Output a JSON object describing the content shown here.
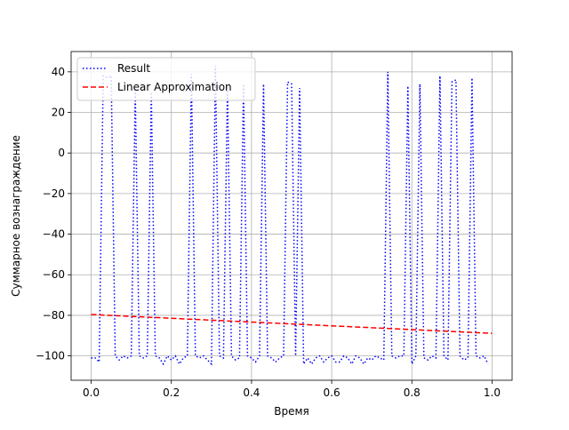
{
  "chart_data": {
    "type": "line",
    "xlabel": "Время",
    "ylabel": "Суммарное вознаграждение",
    "xlim": [
      -0.05,
      1.05
    ],
    "ylim": [
      -112,
      50
    ],
    "xticks": [
      {
        "value": 0,
        "label": "0.0"
      },
      0.2,
      0.4,
      0.6,
      0.8,
      {
        "value": 1,
        "label": "1.0"
      }
    ],
    "yticks": [
      {
        "value": -100,
        "label": "−100"
      },
      {
        "value": -80,
        "label": "−80"
      },
      {
        "value": -60,
        "label": "−60"
      },
      {
        "value": -40,
        "label": "−40"
      },
      {
        "value": -20,
        "label": "−20"
      },
      0,
      20,
      40
    ],
    "grid": true,
    "legend": "upper left",
    "series": [
      {
        "name": "Result",
        "color": "#0000ff",
        "linestyle": "dotted",
        "x": [
          0,
          0.01,
          0.02,
          0.03,
          0.04,
          0.05,
          0.06,
          0.07,
          0.08,
          0.09,
          0.1,
          0.11,
          0.12,
          0.13,
          0.14,
          0.15,
          0.16,
          0.17,
          0.18,
          0.19,
          0.2,
          0.21,
          0.22,
          0.23,
          0.24,
          0.25,
          0.26,
          0.27,
          0.28,
          0.29,
          0.3,
          0.31,
          0.32,
          0.33,
          0.34,
          0.35,
          0.36,
          0.37,
          0.38,
          0.39,
          0.4,
          0.41,
          0.42,
          0.43,
          0.44,
          0.45,
          0.46,
          0.47,
          0.48,
          0.49,
          0.5,
          0.51,
          0.52,
          0.53,
          0.54,
          0.55,
          0.56,
          0.57,
          0.58,
          0.59,
          0.6,
          0.61,
          0.62,
          0.63,
          0.64,
          0.65,
          0.66,
          0.67,
          0.68,
          0.69,
          0.7,
          0.71,
          0.72,
          0.73,
          0.74,
          0.75,
          0.76,
          0.77,
          0.78,
          0.79,
          0.8,
          0.81,
          0.82,
          0.83,
          0.84,
          0.85,
          0.86,
          0.87,
          0.88,
          0.89,
          0.9,
          0.91,
          0.92,
          0.93,
          0.94,
          0.95,
          0.96,
          0.97,
          0.98,
          0.99
        ],
        "values": [
          -101,
          -101,
          -103,
          38,
          37,
          38,
          -100,
          -102,
          -100,
          -101,
          -100,
          31,
          -100,
          -101,
          -100,
          30,
          -100,
          -101,
          -104,
          -100,
          -102,
          -100,
          -104,
          -101,
          -100,
          39,
          -100,
          -101,
          -100,
          -102,
          -104,
          43,
          -100,
          -101,
          33,
          -100,
          -102,
          -101,
          34,
          -100,
          -101,
          -103,
          -100,
          34,
          -100,
          -101,
          -103,
          -101,
          -100,
          35,
          34,
          -100,
          32,
          -104,
          -101,
          -104,
          -101,
          -100,
          -103,
          -101,
          -100,
          -103,
          -103,
          -100,
          -101,
          -104,
          -100,
          -101,
          -104,
          -101,
          -102,
          -100,
          -101,
          -102,
          40,
          -100,
          -101,
          -100,
          -100,
          33,
          -104,
          -100,
          34,
          -101,
          -102,
          -100,
          -101,
          38,
          -100,
          -102,
          35,
          36,
          -100,
          -102,
          -101,
          37,
          -100,
          -101,
          -100,
          -104
        ]
      },
      {
        "name": "Linear Approximation",
        "color": "#ff0000",
        "linestyle": "dashed",
        "x": [
          0,
          1
        ],
        "values": [
          -79.6,
          -88.9
        ]
      }
    ]
  }
}
